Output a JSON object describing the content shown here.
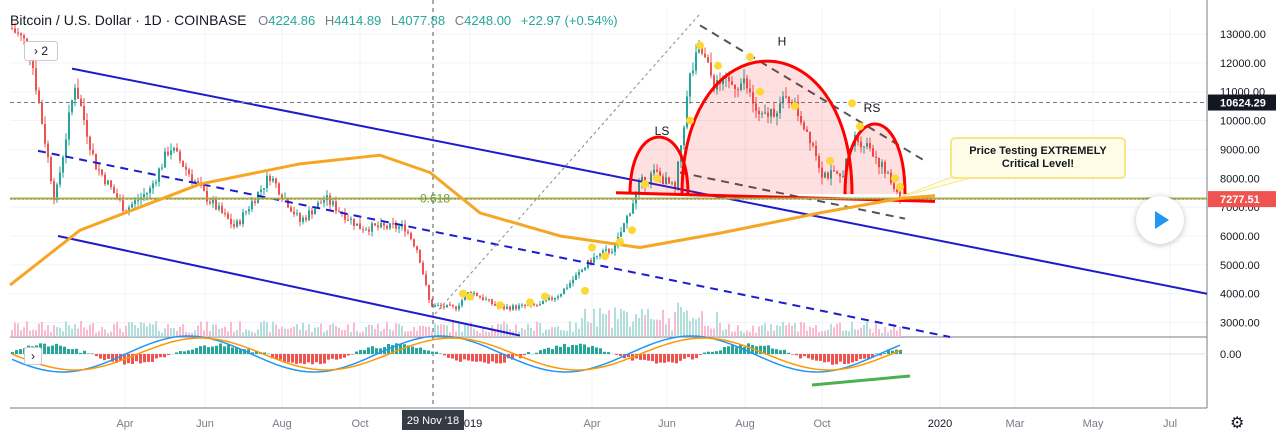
{
  "header": {
    "symbol": "Bitcoin / U.S. Dollar · 1D · COINBASE",
    "open_label": "O",
    "open": "4224.86",
    "high_label": "H",
    "high": "4414.89",
    "low_label": "L",
    "low": "4077.88",
    "close_label": "C",
    "close": "4248.00",
    "change": "+22.97 (+0.54%)"
  },
  "indicator_toggle": "2",
  "annotation": {
    "callout": "Price Testing EXTREMELY Critical Level!"
  },
  "crosshair_date": "29 Nov '18",
  "icons": {
    "play": "play-icon",
    "settings": "gear-icon",
    "collapse": "chevron-right-icon"
  },
  "colors": {
    "up": "#26a69a",
    "down": "#ef5350",
    "channel": "#1c1ccc",
    "ma": "#f5a623",
    "pattern": "#ff0000",
    "divergence": "#4caf50"
  },
  "chart_data": {
    "type": "candlestick",
    "title": "Bitcoin / U.S. Dollar · 1D · COINBASE",
    "x_ticks": [
      "Apr",
      "Jun",
      "Aug",
      "Oct",
      "2019",
      "Apr",
      "Jun",
      "Aug",
      "Oct",
      "2020",
      "Mar",
      "May",
      "Jul"
    ],
    "y_ticks": [
      "13000.00",
      "12000.00",
      "11000.00",
      "10000.00",
      "9000.00",
      "8000.00",
      "7000.00",
      "6000.00",
      "5000.00",
      "4000.00",
      "3000.00"
    ],
    "ylim": [
      2500,
      13900
    ],
    "price_labels": [
      {
        "text": "10624.29",
        "value": 10624.29,
        "color": "#131722"
      },
      {
        "text": "7277.51",
        "value": 7277.51,
        "color": "#ef5350"
      }
    ],
    "fib_label": "0.618",
    "pattern_labels": [
      "LS",
      "H",
      "RS"
    ],
    "macd": {
      "y_tick": "0.00"
    }
  }
}
